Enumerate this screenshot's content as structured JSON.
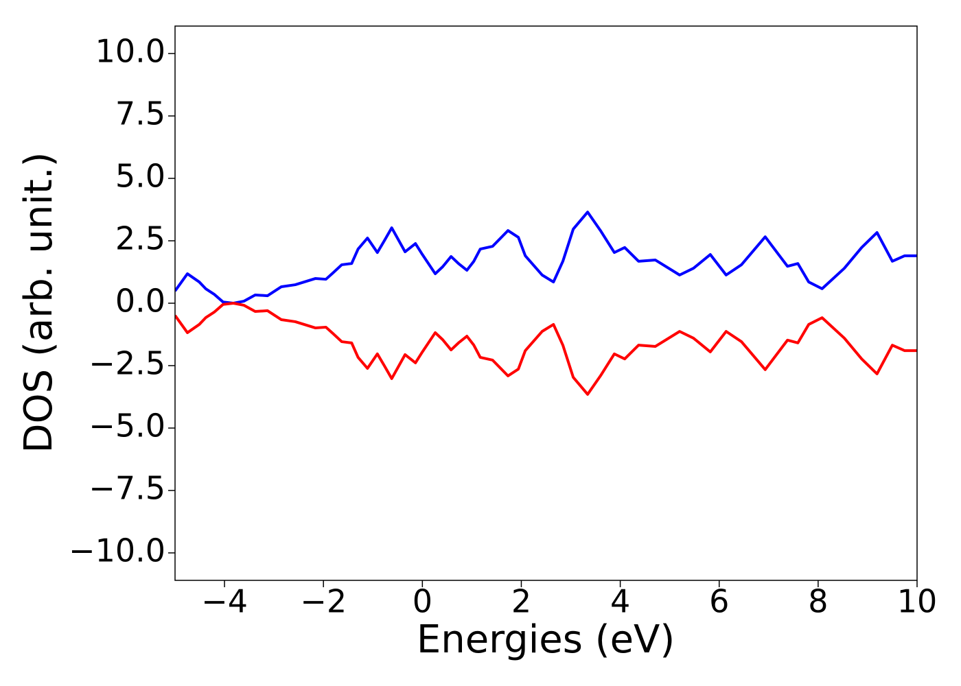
{
  "chart_data": {
    "type": "line",
    "xlabel": "Energies (eV)",
    "ylabel": "DOS (arb. unit.)",
    "x": [
      -5,
      -4.75,
      -4.51,
      -4.38,
      -4.21,
      -4.03,
      -3.82,
      -3.61,
      -3.38,
      -3.13,
      -2.85,
      -2.57,
      -2.16,
      -1.95,
      -1.81,
      -1.63,
      -1.43,
      -1.3,
      -1.11,
      -0.91,
      -0.77,
      -0.62,
      -0.35,
      -0.14,
      0,
      0.26,
      0.41,
      0.58,
      0.73,
      0.9,
      1.04,
      1.17,
      1.42,
      1.73,
      1.94,
      2.08,
      2.42,
      2.65,
      2.84,
      3.05,
      3.34,
      3.6,
      3.88,
      4.09,
      4.37,
      4.71,
      5.2,
      5.48,
      5.82,
      6.14,
      6.45,
      6.93,
      7.38,
      7.59,
      7.81,
      8.08,
      8.53,
      8.88,
      9.19,
      9.5,
      9.75,
      10
    ],
    "series": [
      {
        "color": "#0000ff",
        "values": [
          0.49,
          1.18,
          0.85,
          0.58,
          0.36,
          0.05,
          0,
          0.08,
          0.33,
          0.3,
          0.66,
          0.74,
          0.99,
          0.96,
          1.21,
          1.54,
          1.59,
          2.17,
          2.61,
          2.03,
          2.5,
          3.02,
          2.06,
          2.39,
          1.95,
          1.18,
          1.46,
          1.87,
          1.59,
          1.32,
          1.68,
          2.17,
          2.28,
          2.91,
          2.64,
          1.9,
          1.13,
          0.85,
          1.68,
          2.97,
          3.65,
          2.91,
          2.03,
          2.23,
          1.68,
          1.73,
          1.13,
          1.4,
          1.95,
          1.13,
          1.54,
          2.66,
          1.48,
          1.59,
          0.85,
          0.58,
          1.4,
          2.23,
          2.83,
          1.68,
          1.9,
          1.9
        ]
      },
      {
        "color": "#ff0000",
        "values": [
          -0.49,
          -1.18,
          -0.85,
          -0.58,
          -0.36,
          -0.05,
          0,
          -0.08,
          -0.33,
          -0.3,
          -0.66,
          -0.74,
          -0.99,
          -0.96,
          -1.21,
          -1.54,
          -1.59,
          -2.17,
          -2.61,
          -2.03,
          -2.5,
          -3.02,
          -2.06,
          -2.39,
          -1.95,
          -1.18,
          -1.46,
          -1.87,
          -1.59,
          -1.32,
          -1.68,
          -2.17,
          -2.28,
          -2.91,
          -2.64,
          -1.9,
          -1.13,
          -0.85,
          -1.68,
          -2.97,
          -3.65,
          -2.91,
          -2.03,
          -2.23,
          -1.68,
          -1.73,
          -1.13,
          -1.4,
          -1.95,
          -1.13,
          -1.54,
          -2.66,
          -1.48,
          -1.59,
          -0.85,
          -0.58,
          -1.4,
          -2.23,
          -2.83,
          -1.68,
          -1.9,
          -1.9
        ]
      }
    ],
    "xlim": [
      -5,
      10
    ],
    "xticks": [
      {
        "value": -4,
        "label": "−4"
      },
      {
        "value": -2,
        "label": "−2"
      },
      0,
      2,
      4,
      6,
      8,
      10
    ],
    "ylim": [
      -11.1,
      11.1
    ],
    "yticks": [
      {
        "value": -10,
        "label": "−10.0"
      },
      {
        "value": -7.5,
        "label": "−7.5"
      },
      {
        "value": -5,
        "label": "−5.0"
      },
      {
        "value": -2.5,
        "label": "−2.5"
      },
      {
        "value": 0,
        "label": "0.0"
      },
      2.5,
      {
        "value": 5,
        "label": "5.0"
      },
      7.5,
      {
        "value": 10,
        "label": "10.0"
      }
    ],
    "grid": false
  }
}
